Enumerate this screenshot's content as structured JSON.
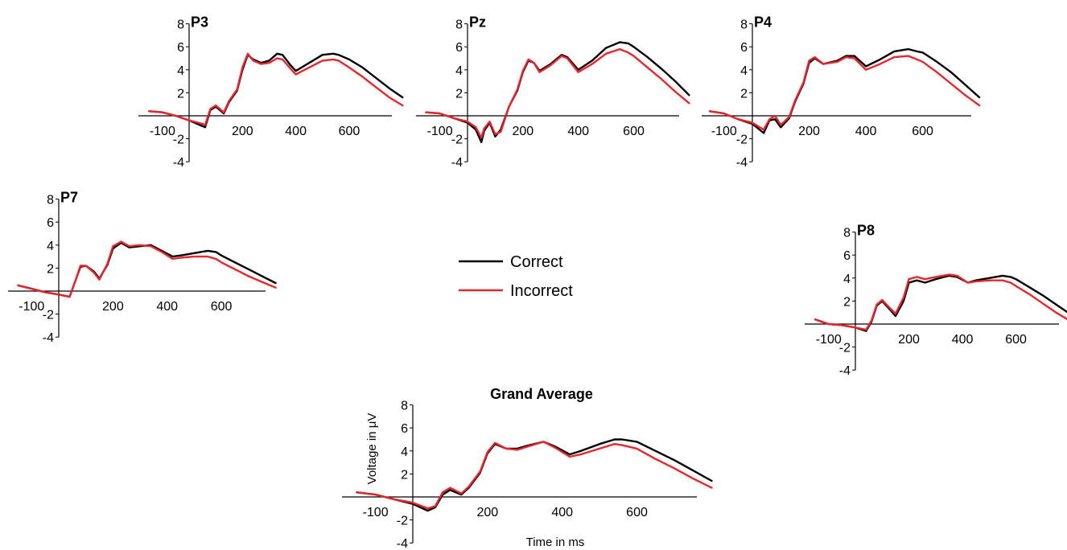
{
  "colors": {
    "correct": "#000000",
    "incorrect": "#e8262b"
  },
  "legend": {
    "correct": "Correct",
    "incorrect": "Incorrect"
  },
  "chart_data": [
    {
      "type": "line",
      "id": "p3",
      "title": "P3",
      "xlim": [
        -150,
        800
      ],
      "ylim": [
        -4,
        8
      ],
      "xticks": [
        "-100",
        "200",
        "400",
        "600"
      ],
      "xtick_values": [
        -100,
        200,
        400,
        600
      ],
      "yticks": [
        "-4",
        "-2",
        "2",
        "4",
        "6",
        "8"
      ],
      "ytick_values": [
        -4,
        -2,
        2,
        4,
        6,
        8
      ],
      "x": [
        -150,
        -100,
        -50,
        0,
        50,
        60,
        80,
        100,
        130,
        150,
        180,
        200,
        220,
        240,
        270,
        300,
        330,
        350,
        380,
        400,
        450,
        500,
        540,
        560,
        600,
        650,
        700,
        750,
        800
      ],
      "series": [
        {
          "name": "Correct",
          "values": [
            0.4,
            0.3,
            0,
            -0.4,
            -0.9,
            -1,
            0.5,
            0.8,
            0.2,
            1.2,
            2.2,
            4,
            5.3,
            4.9,
            4.6,
            4.8,
            5.4,
            5.3,
            4.4,
            3.9,
            4.6,
            5.3,
            5.4,
            5.3,
            4.9,
            4.2,
            3.3,
            2.4,
            1.6
          ]
        },
        {
          "name": "Incorrect",
          "values": [
            0.4,
            0.3,
            0,
            -0.4,
            -0.7,
            -0.8,
            0.6,
            0.9,
            0.3,
            1.3,
            2.3,
            4.2,
            5.4,
            4.8,
            4.5,
            4.6,
            5,
            4.9,
            4.1,
            3.6,
            4.2,
            4.8,
            4.9,
            4.8,
            4.2,
            3.4,
            2.5,
            1.6,
            0.9
          ]
        }
      ]
    },
    {
      "type": "line",
      "id": "pz",
      "title": "Pz",
      "xlim": [
        -150,
        800
      ],
      "ylim": [
        -4,
        8
      ],
      "xticks": [
        "-100",
        "200",
        "400",
        "600"
      ],
      "xtick_values": [
        -100,
        200,
        400,
        600
      ],
      "yticks": [
        "-4",
        "-2",
        "2",
        "4",
        "6",
        "8"
      ],
      "ytick_values": [
        -4,
        -2,
        2,
        4,
        6,
        8
      ],
      "x": [
        -150,
        -100,
        -50,
        0,
        30,
        50,
        60,
        80,
        100,
        120,
        150,
        180,
        200,
        220,
        240,
        260,
        300,
        340,
        360,
        400,
        450,
        500,
        550,
        580,
        600,
        650,
        700,
        750,
        800
      ],
      "series": [
        {
          "name": "Correct",
          "values": [
            0.3,
            0.2,
            -0.2,
            -0.6,
            -1.2,
            -2.3,
            -1.3,
            -0.6,
            -1.8,
            -1.2,
            0.8,
            2.2,
            3.8,
            4.8,
            4.6,
            3.9,
            4.5,
            5.3,
            5.1,
            4,
            4.8,
            5.9,
            6.4,
            6.3,
            6,
            5.1,
            4.1,
            3,
            1.8
          ]
        },
        {
          "name": "Incorrect",
          "values": [
            0.3,
            0.2,
            -0.2,
            -0.5,
            -1,
            -1.9,
            -1.1,
            -0.5,
            -1.6,
            -1.4,
            0.8,
            2.3,
            3.9,
            4.9,
            4.6,
            3.8,
            4.4,
            5.2,
            5,
            3.8,
            4.5,
            5.4,
            5.8,
            5.5,
            5.2,
            4.2,
            3.2,
            2.1,
            1.1
          ]
        }
      ]
    },
    {
      "type": "line",
      "id": "p4",
      "title": "P4",
      "xlim": [
        -150,
        800
      ],
      "ylim": [
        -4,
        8
      ],
      "xticks": [
        "-100",
        "200",
        "400",
        "600"
      ],
      "xtick_values": [
        -100,
        200,
        400,
        600
      ],
      "yticks": [
        "-4",
        "-2",
        "2",
        "4",
        "6",
        "8"
      ],
      "ytick_values": [
        -4,
        -2,
        2,
        4,
        6,
        8
      ],
      "x": [
        -150,
        -100,
        -50,
        0,
        40,
        60,
        80,
        100,
        130,
        150,
        180,
        200,
        220,
        250,
        300,
        330,
        360,
        400,
        450,
        500,
        550,
        580,
        600,
        650,
        700,
        750,
        800
      ],
      "series": [
        {
          "name": "Correct",
          "values": [
            0.4,
            0.2,
            -0.3,
            -0.7,
            -1.5,
            -0.4,
            -0.3,
            -1,
            -0.2,
            1.2,
            2.8,
            4.6,
            5,
            4.5,
            4.8,
            5.2,
            5.2,
            4.3,
            4.9,
            5.6,
            5.8,
            5.6,
            5.5,
            4.7,
            3.8,
            2.7,
            1.6
          ]
        },
        {
          "name": "Incorrect",
          "values": [
            0.4,
            0.2,
            -0.3,
            -0.6,
            -1.2,
            -0.3,
            0,
            -0.8,
            -0.1,
            1.3,
            2.9,
            4.8,
            5.1,
            4.5,
            4.7,
            5.1,
            5,
            4,
            4.5,
            5.1,
            5.2,
            4.9,
            4.7,
            3.8,
            2.8,
            1.8,
            0.9
          ]
        }
      ]
    },
    {
      "type": "line",
      "id": "p7",
      "title": "P7",
      "xlim": [
        -150,
        800
      ],
      "ylim": [
        -4,
        8
      ],
      "xticks": [
        "-100",
        "200",
        "400",
        "600"
      ],
      "xtick_values": [
        -100,
        200,
        400,
        600
      ],
      "yticks": [
        "-4",
        "-2",
        "2",
        "4",
        "6",
        "8"
      ],
      "ytick_values": [
        -4,
        -2,
        2,
        4,
        6,
        8
      ],
      "x": [
        -150,
        -100,
        -50,
        0,
        40,
        60,
        80,
        100,
        130,
        150,
        180,
        200,
        230,
        260,
        300,
        340,
        380,
        420,
        450,
        500,
        550,
        580,
        600,
        650,
        700,
        750,
        800
      ],
      "series": [
        {
          "name": "Correct",
          "values": [
            0.5,
            0.2,
            -0.1,
            -0.3,
            -0.5,
            0.8,
            2.1,
            2.2,
            1.7,
            1.1,
            2.3,
            3.7,
            4.2,
            3.8,
            3.9,
            4,
            3.5,
            3,
            3.1,
            3.3,
            3.5,
            3.4,
            3.1,
            2.5,
            1.9,
            1.3,
            0.7
          ]
        },
        {
          "name": "Incorrect",
          "values": [
            0.5,
            0.2,
            -0.1,
            -0.3,
            -0.5,
            0.8,
            2.2,
            2.2,
            1.6,
            1,
            2.4,
            3.9,
            4.3,
            3.9,
            4,
            3.9,
            3.4,
            2.8,
            2.9,
            3,
            3,
            2.8,
            2.5,
            1.9,
            1.3,
            0.8,
            0.3
          ]
        }
      ]
    },
    {
      "type": "line",
      "id": "p8",
      "title": "P8",
      "xlim": [
        -150,
        800
      ],
      "ylim": [
        -4,
        8
      ],
      "xticks": [
        "-100",
        "200",
        "400",
        "600"
      ],
      "xtick_values": [
        -100,
        200,
        400,
        600
      ],
      "yticks": [
        "-4",
        "-2",
        "2",
        "4",
        "6",
        "8"
      ],
      "ytick_values": [
        -4,
        -2,
        2,
        4,
        6,
        8
      ],
      "x": [
        -150,
        -100,
        -50,
        0,
        40,
        60,
        80,
        100,
        120,
        150,
        180,
        200,
        230,
        260,
        300,
        350,
        380,
        420,
        450,
        500,
        550,
        580,
        600,
        650,
        700,
        750,
        800
      ],
      "series": [
        {
          "name": "Correct",
          "values": [
            0.4,
            0,
            -0.1,
            -0.3,
            -0.6,
            0.2,
            1.6,
            2,
            1.5,
            0.7,
            2,
            3.6,
            3.8,
            3.6,
            3.9,
            4.2,
            4.1,
            3.6,
            3.8,
            4,
            4.2,
            4.1,
            3.9,
            3.2,
            2.5,
            1.7,
            0.9
          ]
        },
        {
          "name": "Incorrect",
          "values": [
            0.4,
            0,
            -0.1,
            -0.3,
            -0.5,
            0.3,
            1.7,
            2.1,
            1.6,
            0.9,
            2.3,
            3.9,
            4.1,
            3.9,
            4.1,
            4.3,
            4.2,
            3.6,
            3.7,
            3.8,
            3.8,
            3.6,
            3.3,
            2.6,
            1.8,
            1,
            0.3
          ]
        }
      ]
    },
    {
      "type": "line",
      "id": "grand",
      "title": "Grand Average",
      "xlabel": "Time in ms",
      "ylabel": "Voltage in μV",
      "xlim": [
        -150,
        800
      ],
      "ylim": [
        -4,
        8
      ],
      "xticks": [
        "-100",
        "200",
        "400",
        "600"
      ],
      "xtick_values": [
        -100,
        200,
        400,
        600
      ],
      "yticks": [
        "-4",
        "-2",
        "2",
        "4",
        "6",
        "8"
      ],
      "ytick_values": [
        -4,
        -2,
        2,
        4,
        6,
        8
      ],
      "x": [
        -150,
        -100,
        -50,
        0,
        40,
        60,
        80,
        100,
        130,
        150,
        180,
        200,
        220,
        250,
        280,
        300,
        350,
        380,
        420,
        450,
        500,
        540,
        560,
        600,
        650,
        700,
        750,
        800
      ],
      "series": [
        {
          "name": "Correct",
          "values": [
            0.4,
            0.2,
            -0.2,
            -0.6,
            -1.2,
            -0.9,
            0.2,
            0.6,
            0.2,
            0.8,
            2.1,
            3.8,
            4.6,
            4.2,
            4.2,
            4.4,
            4.8,
            4.4,
            3.7,
            4,
            4.6,
            5,
            5,
            4.8,
            4,
            3.2,
            2.3,
            1.4
          ]
        },
        {
          "name": "Incorrect",
          "values": [
            0.4,
            0.2,
            -0.2,
            -0.5,
            -1,
            -0.8,
            0.4,
            0.8,
            0.3,
            0.9,
            2.2,
            3.9,
            4.7,
            4.2,
            4.1,
            4.3,
            4.8,
            4.3,
            3.5,
            3.7,
            4.2,
            4.6,
            4.5,
            4.2,
            3.3,
            2.5,
            1.6,
            0.8
          ]
        }
      ]
    }
  ]
}
